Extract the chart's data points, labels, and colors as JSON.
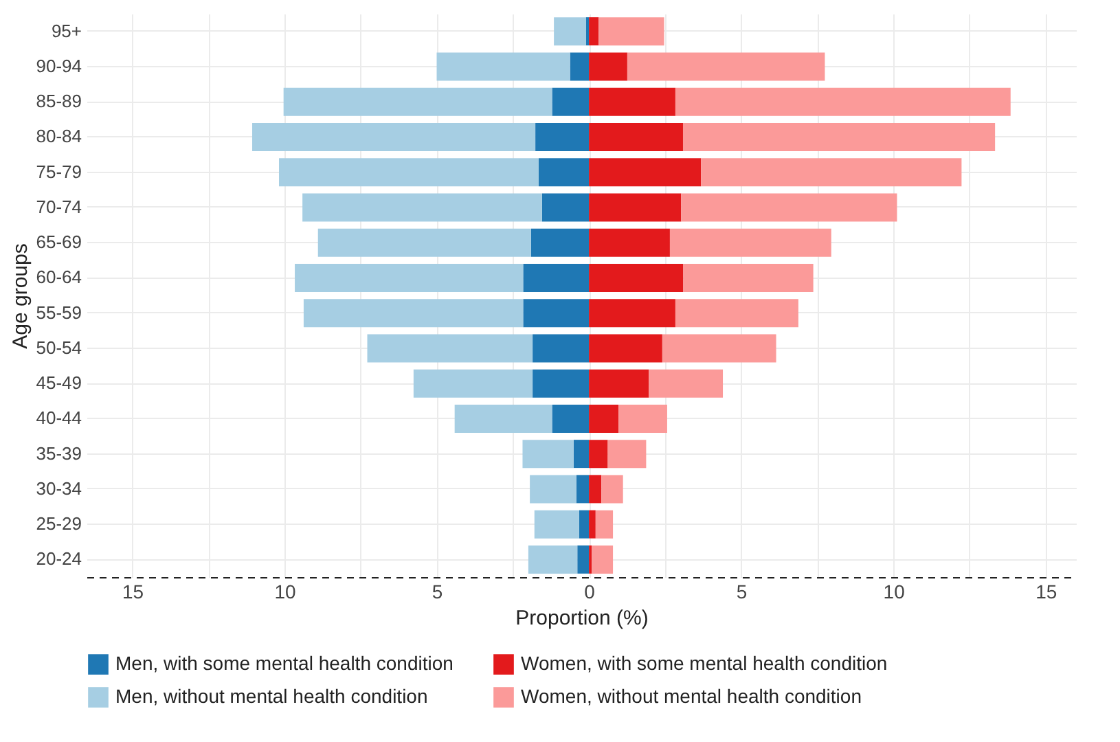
{
  "chart_data": {
    "type": "bar",
    "orientation": "horizontal",
    "stacked": true,
    "xlabel": "Proportion (%)",
    "ylabel": "Age groups",
    "categories": [
      "95+",
      "90-94",
      "85-89",
      "80-84",
      "75-79",
      "70-74",
      "65-69",
      "60-64",
      "55-59",
      "50-54",
      "45-49",
      "40-44",
      "35-39",
      "30-34",
      "25-29",
      "20-24"
    ],
    "series": [
      {
        "name": "Men, with some mental health condition",
        "color": "#1f78b4",
        "values": [
          -0.1,
          -0.62,
          -1.21,
          -1.76,
          -1.65,
          -1.54,
          -1.9,
          -2.16,
          -2.16,
          -1.85,
          -1.85,
          -1.21,
          -0.5,
          -0.41,
          -0.32,
          -0.38
        ]
      },
      {
        "name": "Men, without mental health condition",
        "color": "#a6cee3",
        "values": [
          -1.05,
          -4.38,
          -8.82,
          -9.3,
          -8.53,
          -7.87,
          -7.0,
          -7.5,
          -7.21,
          -5.43,
          -3.91,
          -3.2,
          -1.68,
          -1.53,
          -1.47,
          -1.61
        ]
      },
      {
        "name": "Women, with some mental health condition",
        "color": "#e31a1c",
        "values": [
          0.32,
          1.26,
          2.84,
          3.09,
          3.68,
          3.03,
          2.66,
          3.1,
          2.84,
          2.41,
          1.97,
          0.97,
          0.62,
          0.41,
          0.22,
          0.09
        ]
      },
      {
        "name": "Women, without mental health condition",
        "color": "#fb9a99",
        "values": [
          2.15,
          6.49,
          11.01,
          10.25,
          8.56,
          7.09,
          5.3,
          4.27,
          4.04,
          3.74,
          2.43,
          1.6,
          1.26,
          0.71,
          0.57,
          0.7
        ]
      }
    ],
    "xlim": [
      -16.5,
      16
    ],
    "xticks": [
      {
        "value": -15,
        "label": "15"
      },
      {
        "value": -12.5,
        "label": null
      },
      {
        "value": -10,
        "label": "10"
      },
      {
        "value": -7.5,
        "label": null
      },
      {
        "value": -5,
        "label": "5"
      },
      {
        "value": -2.5,
        "label": null
      },
      0,
      {
        "value": 2.5,
        "label": null
      },
      5,
      {
        "value": 7.5,
        "label": null
      },
      10,
      {
        "value": 12.5,
        "label": null
      },
      15
    ],
    "grid": true,
    "legend": "bottom"
  }
}
